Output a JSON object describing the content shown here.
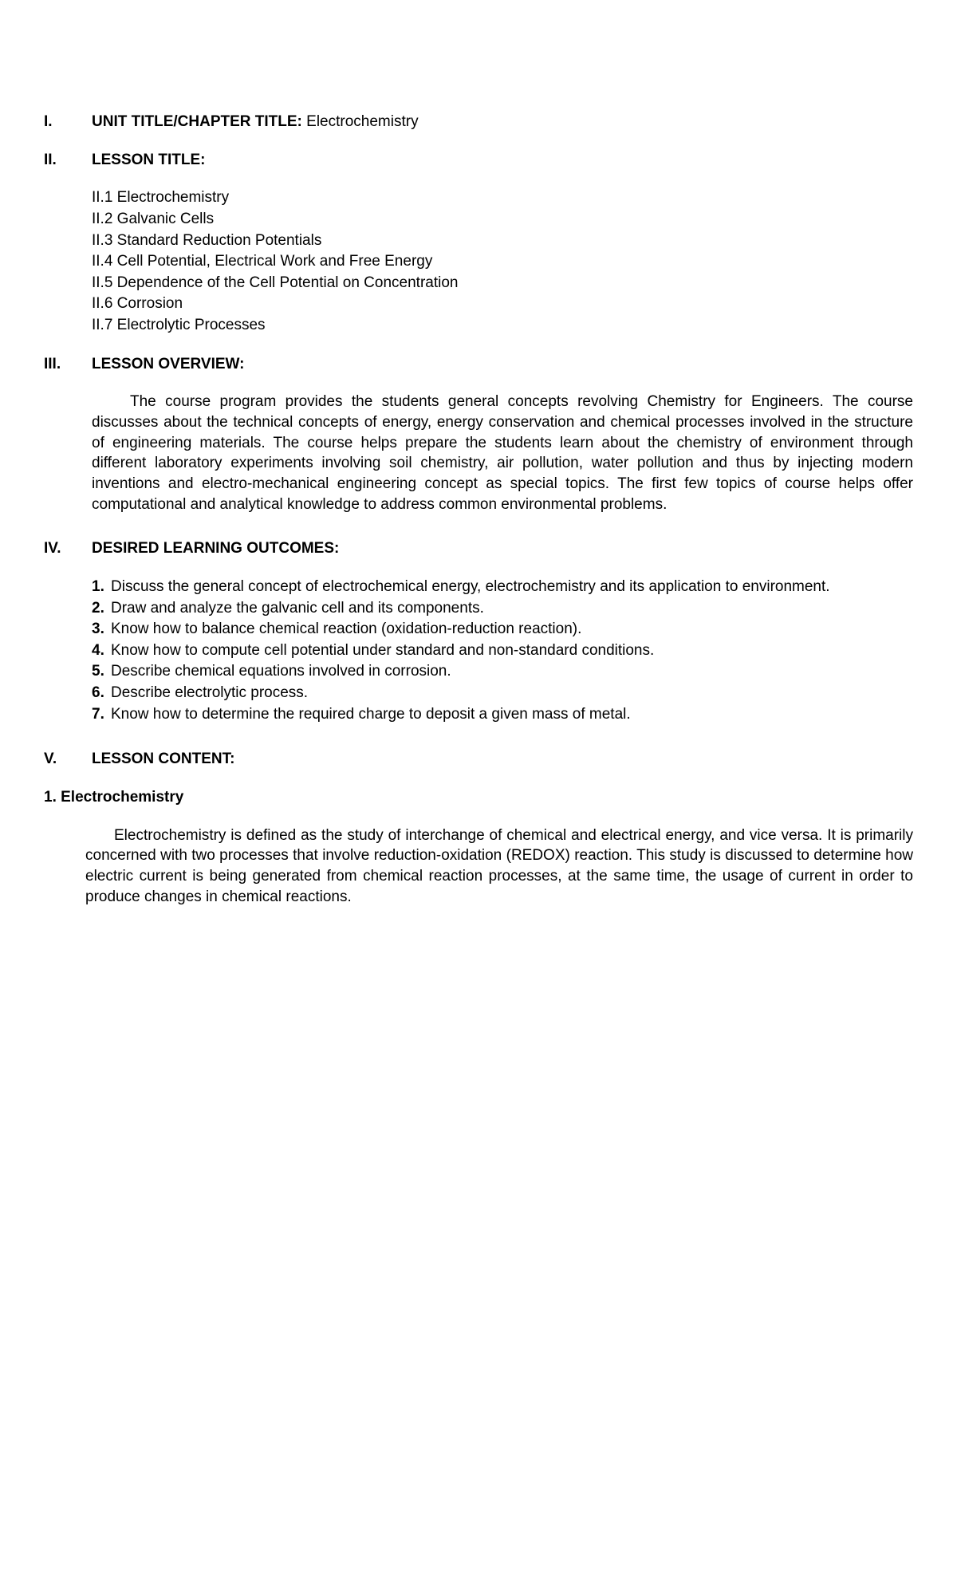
{
  "sections": {
    "s1": {
      "roman": "I.",
      "heading": "UNIT TITLE/CHAPTER TITLE: ",
      "inline": "Electrochemistry"
    },
    "s2": {
      "roman": "II.",
      "heading": "LESSON TITLE:",
      "items": [
        "II.1 Electrochemistry",
        "II.2 Galvanic Cells",
        "II.3 Standard Reduction Potentials",
        "II.4 Cell Potential, Electrical Work and Free Energy",
        "II.5 Dependence of the Cell Potential on Concentration",
        "II.6 Corrosion",
        "II.7 Electrolytic Processes"
      ]
    },
    "s3": {
      "roman": "III.",
      "heading": "LESSON OVERVIEW:",
      "text": "The course program provides the students general concepts revolving Chemistry for Engineers. The course discusses about the technical concepts of energy, energy conservation and chemical processes involved in the structure of engineering materials. The course helps prepare the students learn about the chemistry of environment through different laboratory experiments involving soil chemistry, air pollution, water pollution and thus by injecting modern inventions and electro-mechanical engineering concept as special topics. The first few topics of course helps offer computational and analytical knowledge to address common environmental problems."
    },
    "s4": {
      "roman": "IV.",
      "heading": "DESIRED LEARNING OUTCOMES:",
      "outcomes": [
        {
          "n": "1.",
          "t": "Discuss the general concept of electrochemical energy, electrochemistry and its application to environment."
        },
        {
          "n": "2.",
          "t": "Draw and analyze the galvanic cell and its components."
        },
        {
          "n": "3.",
          "t": "Know how to balance chemical reaction (oxidation-reduction reaction)."
        },
        {
          "n": "4.",
          "t": "Know how to compute cell potential under standard and non-standard conditions."
        },
        {
          "n": "5.",
          "t": "Describe chemical equations involved in corrosion."
        },
        {
          "n": "6.",
          "t": "Describe electrolytic process."
        },
        {
          "n": "7.",
          "t": "Know how to determine the required charge to deposit a given mass of metal."
        }
      ]
    },
    "s5": {
      "roman": "V.",
      "heading": "LESSON CONTENT:",
      "sub": "1.   Electrochemistry",
      "para": "Electrochemistry is defined as the study of interchange of chemical and electrical energy, and vice versa. It is primarily concerned with two processes that involve reduction-oxidation (REDOX) reaction. This study is discussed to determine how electric current is being generated from chemical reaction processes, at the same time, the usage of current in order to produce changes in chemical reactions."
    }
  }
}
